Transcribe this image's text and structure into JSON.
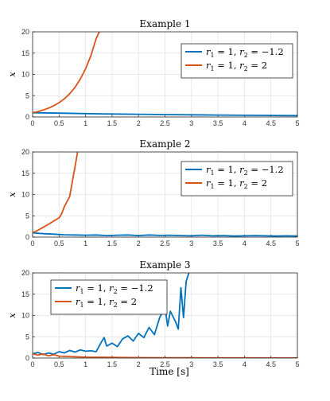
{
  "xlabel": "Time [s]",
  "chart_data": [
    {
      "type": "line",
      "title": "Example 1",
      "ylabel": "x",
      "xlim": [
        0,
        5
      ],
      "ylim": [
        0,
        20
      ],
      "xticks": [
        "0",
        "0.5",
        "1",
        "1.5",
        "2",
        "2.5",
        "3",
        "3.5",
        "4",
        "4.5",
        "5"
      ],
      "yticks": [
        "0",
        "5",
        "10",
        "15",
        "20"
      ],
      "grid": true,
      "legend_position": "top-right",
      "series": [
        {
          "name": "r1 = 1, r2 = −1.2",
          "color": "#0072BD",
          "x": [
            0,
            0.5,
            1,
            1.5,
            2,
            2.5,
            3,
            3.5,
            4,
            4.5,
            5
          ],
          "y": [
            1.0,
            0.89,
            0.79,
            0.7,
            0.63,
            0.56,
            0.5,
            0.44,
            0.39,
            0.35,
            0.32
          ]
        },
        {
          "name": "r1 = 1, r2 = 2",
          "color": "#D95319",
          "x": [
            0,
            0.1,
            0.2,
            0.3,
            0.4,
            0.5,
            0.6,
            0.7,
            0.8,
            0.9,
            1.0,
            1.1,
            1.2,
            1.26
          ],
          "y": [
            1.0,
            1.27,
            1.62,
            2.07,
            2.64,
            3.36,
            4.28,
            5.46,
            6.96,
            8.87,
            11.3,
            14.4,
            18.4,
            20.0
          ]
        }
      ]
    },
    {
      "type": "line",
      "title": "Example 2",
      "ylabel": "x",
      "xlim": [
        0,
        5
      ],
      "ylim": [
        0,
        20
      ],
      "xticks": [
        "0",
        "0.5",
        "1",
        "1.5",
        "2",
        "2.5",
        "3",
        "3.5",
        "4",
        "4.5",
        "5"
      ],
      "yticks": [
        "0",
        "5",
        "10",
        "15",
        "20"
      ],
      "grid": true,
      "legend_position": "top-right",
      "series": [
        {
          "name": "r1 = 1, r2 = −1.2",
          "color": "#0072BD",
          "x": [
            0,
            0.2,
            0.4,
            0.6,
            0.8,
            1.0,
            1.2,
            1.4,
            1.6,
            1.8,
            2.0,
            2.2,
            2.4,
            2.6,
            2.8,
            3.0,
            3.2,
            3.4,
            3.6,
            3.8,
            4.0,
            4.2,
            4.4,
            4.6,
            4.8,
            5.0
          ],
          "y": [
            1.0,
            0.8,
            0.7,
            0.55,
            0.5,
            0.45,
            0.5,
            0.35,
            0.45,
            0.5,
            0.35,
            0.5,
            0.4,
            0.45,
            0.35,
            0.3,
            0.45,
            0.3,
            0.35,
            0.25,
            0.3,
            0.35,
            0.3,
            0.25,
            0.3,
            0.25
          ]
        },
        {
          "name": "r1 = 1, r2 = 2",
          "color": "#D95319",
          "x": [
            0,
            0.1,
            0.2,
            0.3,
            0.4,
            0.5,
            0.55,
            0.6,
            0.7,
            0.8,
            0.85
          ],
          "y": [
            1.0,
            1.6,
            2.3,
            3.0,
            3.8,
            4.5,
            5.5,
            7.2,
            9.5,
            16.5,
            20.0
          ]
        }
      ]
    },
    {
      "type": "line",
      "title": "Example 3",
      "ylabel": "x",
      "xlim": [
        0,
        5
      ],
      "ylim": [
        0,
        20
      ],
      "xticks": [
        "0",
        "0.5",
        "1",
        "1.5",
        "2",
        "2.5",
        "3",
        "3.5",
        "4",
        "4.5",
        "5"
      ],
      "yticks": [
        "0",
        "5",
        "10",
        "15",
        "20"
      ],
      "grid": true,
      "legend_position": "top-left",
      "series": [
        {
          "name": "r1 = 1, r2 = −1.2",
          "color": "#0072BD",
          "x": [
            0,
            0.1,
            0.2,
            0.3,
            0.4,
            0.5,
            0.6,
            0.7,
            0.8,
            0.9,
            1.0,
            1.1,
            1.2,
            1.3,
            1.35,
            1.4,
            1.5,
            1.6,
            1.7,
            1.8,
            1.9,
            2.0,
            2.1,
            2.2,
            2.3,
            2.4,
            2.5,
            2.55,
            2.6,
            2.7,
            2.75,
            2.8,
            2.85,
            2.9,
            2.95
          ],
          "y": [
            1.0,
            1.3,
            0.8,
            1.2,
            0.9,
            1.5,
            1.2,
            1.8,
            1.4,
            1.9,
            1.6,
            1.7,
            1.5,
            3.8,
            4.8,
            2.8,
            3.5,
            2.7,
            4.5,
            5.2,
            4.0,
            5.8,
            4.8,
            7.2,
            5.5,
            9.5,
            12.0,
            7.5,
            11.0,
            8.5,
            6.8,
            16.5,
            9.5,
            18.0,
            20.0
          ]
        },
        {
          "name": "r1 = 1, r2 = 2",
          "color": "#D95319",
          "x": [
            0,
            0.1,
            0.2,
            0.3,
            0.4,
            0.5,
            0.6,
            0.8,
            1.0,
            1.5,
            2.0,
            2.5,
            3.0,
            3.5,
            4.0,
            4.5,
            5.0
          ],
          "y": [
            1.0,
            0.7,
            0.95,
            0.5,
            0.8,
            0.45,
            0.4,
            0.3,
            0.2,
            0.15,
            0.1,
            0.08,
            0.06,
            0.04,
            0.03,
            0.02,
            0.02
          ]
        }
      ]
    }
  ]
}
